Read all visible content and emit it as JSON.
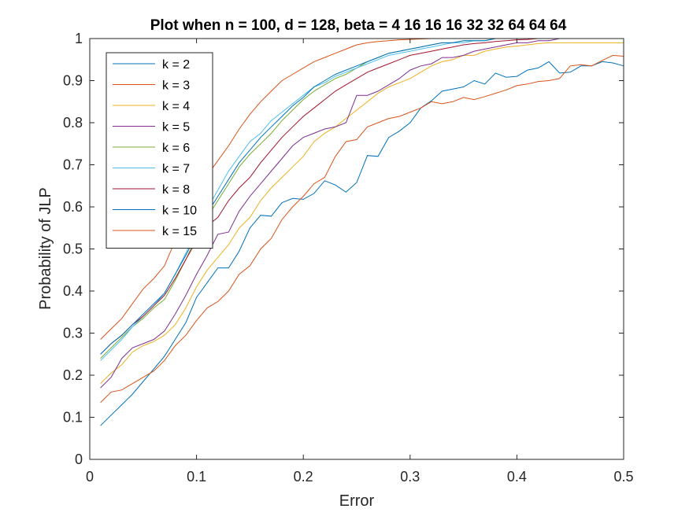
{
  "chart_data": {
    "type": "line",
    "title": "Plot when n = 100, d = 128, beta = 4  16  16  16  32  32  64  64  64",
    "xlabel": "Error",
    "ylabel": "Probability of JLP",
    "xlim": [
      0,
      0.5
    ],
    "ylim": [
      0,
      1
    ],
    "xticks": [
      "0",
      "0.1",
      "0.2",
      "0.3",
      "0.4",
      "0.5"
    ],
    "yticks": [
      "0",
      "0.1",
      "0.2",
      "0.3",
      "0.4",
      "0.5",
      "0.6",
      "0.7",
      "0.8",
      "0.9",
      "1"
    ],
    "grid": false,
    "legend_position": "top-left",
    "x": [
      0.01,
      0.02,
      0.03,
      0.04,
      0.05,
      0.06,
      0.07,
      0.08,
      0.09,
      0.1,
      0.11,
      0.12,
      0.13,
      0.14,
      0.15,
      0.16,
      0.17,
      0.18,
      0.19,
      0.2,
      0.21,
      0.22,
      0.23,
      0.24,
      0.25,
      0.26,
      0.27,
      0.28,
      0.29,
      0.3,
      0.31,
      0.32,
      0.33,
      0.34,
      0.35,
      0.36,
      0.37,
      0.38,
      0.39,
      0.4,
      0.41,
      0.42,
      0.43,
      0.44,
      0.45,
      0.46,
      0.47,
      0.48,
      0.49,
      0.5
    ],
    "series": [
      {
        "name": "k = 2",
        "color": "#0072BD",
        "values": [
          0.08,
          0.105,
          0.13,
          0.155,
          0.185,
          0.215,
          0.245,
          0.285,
          0.325,
          0.385,
          0.42,
          0.455,
          0.455,
          0.495,
          0.55,
          0.58,
          0.578,
          0.61,
          0.62,
          0.618,
          0.632,
          0.662,
          0.652,
          0.635,
          0.658,
          0.722,
          0.72,
          0.765,
          0.78,
          0.8,
          0.835,
          0.852,
          0.875,
          0.88,
          0.885,
          0.9,
          0.892,
          0.918,
          0.908,
          0.91,
          0.925,
          0.93,
          0.945,
          0.918,
          0.92,
          0.935,
          0.935,
          0.945,
          0.942,
          0.935
        ]
      },
      {
        "name": "k = 3",
        "color": "#D95319",
        "values": [
          0.135,
          0.16,
          0.165,
          0.18,
          0.195,
          0.21,
          0.235,
          0.27,
          0.295,
          0.33,
          0.36,
          0.375,
          0.4,
          0.44,
          0.46,
          0.5,
          0.525,
          0.57,
          0.6,
          0.625,
          0.655,
          0.67,
          0.72,
          0.755,
          0.76,
          0.79,
          0.8,
          0.81,
          0.815,
          0.825,
          0.835,
          0.85,
          0.845,
          0.85,
          0.86,
          0.855,
          0.862,
          0.87,
          0.878,
          0.888,
          0.892,
          0.898,
          0.9,
          0.905,
          0.935,
          0.938,
          0.935,
          0.948,
          0.96,
          0.958
        ]
      },
      {
        "name": "k = 4",
        "color": "#EDB120",
        "values": [
          0.18,
          0.205,
          0.225,
          0.255,
          0.27,
          0.28,
          0.295,
          0.32,
          0.36,
          0.41,
          0.45,
          0.48,
          0.51,
          0.55,
          0.575,
          0.615,
          0.645,
          0.67,
          0.695,
          0.72,
          0.755,
          0.775,
          0.79,
          0.81,
          0.83,
          0.85,
          0.87,
          0.885,
          0.895,
          0.905,
          0.92,
          0.935,
          0.945,
          0.95,
          0.96,
          0.96,
          0.97,
          0.975,
          0.98,
          0.982,
          0.985,
          0.988,
          0.99,
          0.99,
          0.99,
          0.99,
          0.99,
          0.99,
          0.99,
          0.99
        ]
      },
      {
        "name": "k = 5",
        "color": "#7E2F8E",
        "values": [
          0.17,
          0.195,
          0.24,
          0.265,
          0.275,
          0.285,
          0.305,
          0.345,
          0.39,
          0.44,
          0.485,
          0.535,
          0.54,
          0.59,
          0.625,
          0.655,
          0.685,
          0.715,
          0.745,
          0.765,
          0.775,
          0.785,
          0.79,
          0.8,
          0.865,
          0.865,
          0.875,
          0.89,
          0.905,
          0.925,
          0.935,
          0.94,
          0.955,
          0.955,
          0.96,
          0.97,
          0.975,
          0.98,
          0.985,
          0.99,
          0.99,
          0.995,
          0.995,
          1.0,
          1.0,
          1.0,
          1.0,
          1.0,
          1.0,
          1.0
        ]
      },
      {
        "name": "k = 6",
        "color": "#77AC30",
        "values": [
          0.24,
          0.265,
          0.29,
          0.315,
          0.335,
          0.36,
          0.38,
          0.425,
          0.475,
          0.53,
          0.575,
          0.615,
          0.655,
          0.695,
          0.725,
          0.75,
          0.775,
          0.805,
          0.83,
          0.855,
          0.875,
          0.89,
          0.905,
          0.915,
          0.93,
          0.945,
          0.955,
          0.965,
          0.97,
          0.975,
          0.98,
          0.985,
          0.99,
          0.99,
          0.995,
          0.995,
          0.995,
          1.0,
          1.0,
          1.0,
          1.0,
          1.0,
          1.0,
          1.0,
          1.0,
          1.0,
          1.0,
          1.0,
          1.0,
          1.0
        ]
      },
      {
        "name": "k = 7",
        "color": "#4DBEEE",
        "values": [
          0.235,
          0.26,
          0.285,
          0.315,
          0.34,
          0.365,
          0.395,
          0.44,
          0.49,
          0.545,
          0.595,
          0.64,
          0.685,
          0.72,
          0.755,
          0.775,
          0.805,
          0.825,
          0.845,
          0.865,
          0.885,
          0.895,
          0.91,
          0.92,
          0.93,
          0.94,
          0.95,
          0.96,
          0.965,
          0.97,
          0.975,
          0.98,
          0.985,
          0.99,
          0.99,
          0.995,
          0.995,
          1.0,
          1.0,
          1.0,
          1.0,
          1.0,
          1.0,
          1.0,
          1.0,
          1.0,
          1.0,
          1.0,
          1.0,
          1.0
        ]
      },
      {
        "name": "k = 8",
        "color": "#A2142F",
        "values": [
          0.25,
          0.275,
          0.295,
          0.32,
          0.34,
          0.365,
          0.39,
          0.43,
          0.475,
          0.52,
          0.555,
          0.575,
          0.615,
          0.645,
          0.67,
          0.705,
          0.735,
          0.765,
          0.79,
          0.815,
          0.835,
          0.855,
          0.875,
          0.89,
          0.905,
          0.92,
          0.93,
          0.94,
          0.95,
          0.96,
          0.965,
          0.97,
          0.975,
          0.98,
          0.985,
          0.988,
          0.99,
          0.993,
          0.995,
          0.997,
          0.998,
          1.0,
          1.0,
          1.0,
          1.0,
          1.0,
          1.0,
          1.0,
          1.0,
          1.0
        ]
      },
      {
        "name": "k = 10",
        "color": "#0072BD",
        "values": [
          0.25,
          0.275,
          0.295,
          0.32,
          0.345,
          0.37,
          0.395,
          0.44,
          0.485,
          0.535,
          0.585,
          0.625,
          0.665,
          0.705,
          0.735,
          0.765,
          0.79,
          0.815,
          0.84,
          0.86,
          0.885,
          0.9,
          0.915,
          0.925,
          0.935,
          0.945,
          0.955,
          0.965,
          0.97,
          0.975,
          0.98,
          0.985,
          0.99,
          0.99,
          0.995,
          0.995,
          0.995,
          1.0,
          1.0,
          1.0,
          1.0,
          1.0,
          1.0,
          1.0,
          1.0,
          1.0,
          1.0,
          1.0,
          1.0,
          1.0
        ]
      },
      {
        "name": "k = 15",
        "color": "#D95319",
        "values": [
          0.285,
          0.31,
          0.335,
          0.37,
          0.405,
          0.43,
          0.46,
          0.52,
          0.575,
          0.63,
          0.675,
          0.71,
          0.745,
          0.785,
          0.82,
          0.85,
          0.875,
          0.9,
          0.915,
          0.93,
          0.945,
          0.955,
          0.965,
          0.975,
          0.985,
          0.99,
          0.993,
          0.995,
          0.997,
          0.998,
          0.999,
          1.0,
          1.0,
          1.0,
          1.0,
          1.0,
          1.0,
          1.0,
          1.0,
          1.0,
          1.0,
          1.0,
          1.0,
          1.0,
          1.0,
          1.0,
          1.0,
          1.0,
          1.0,
          1.0
        ]
      }
    ]
  }
}
